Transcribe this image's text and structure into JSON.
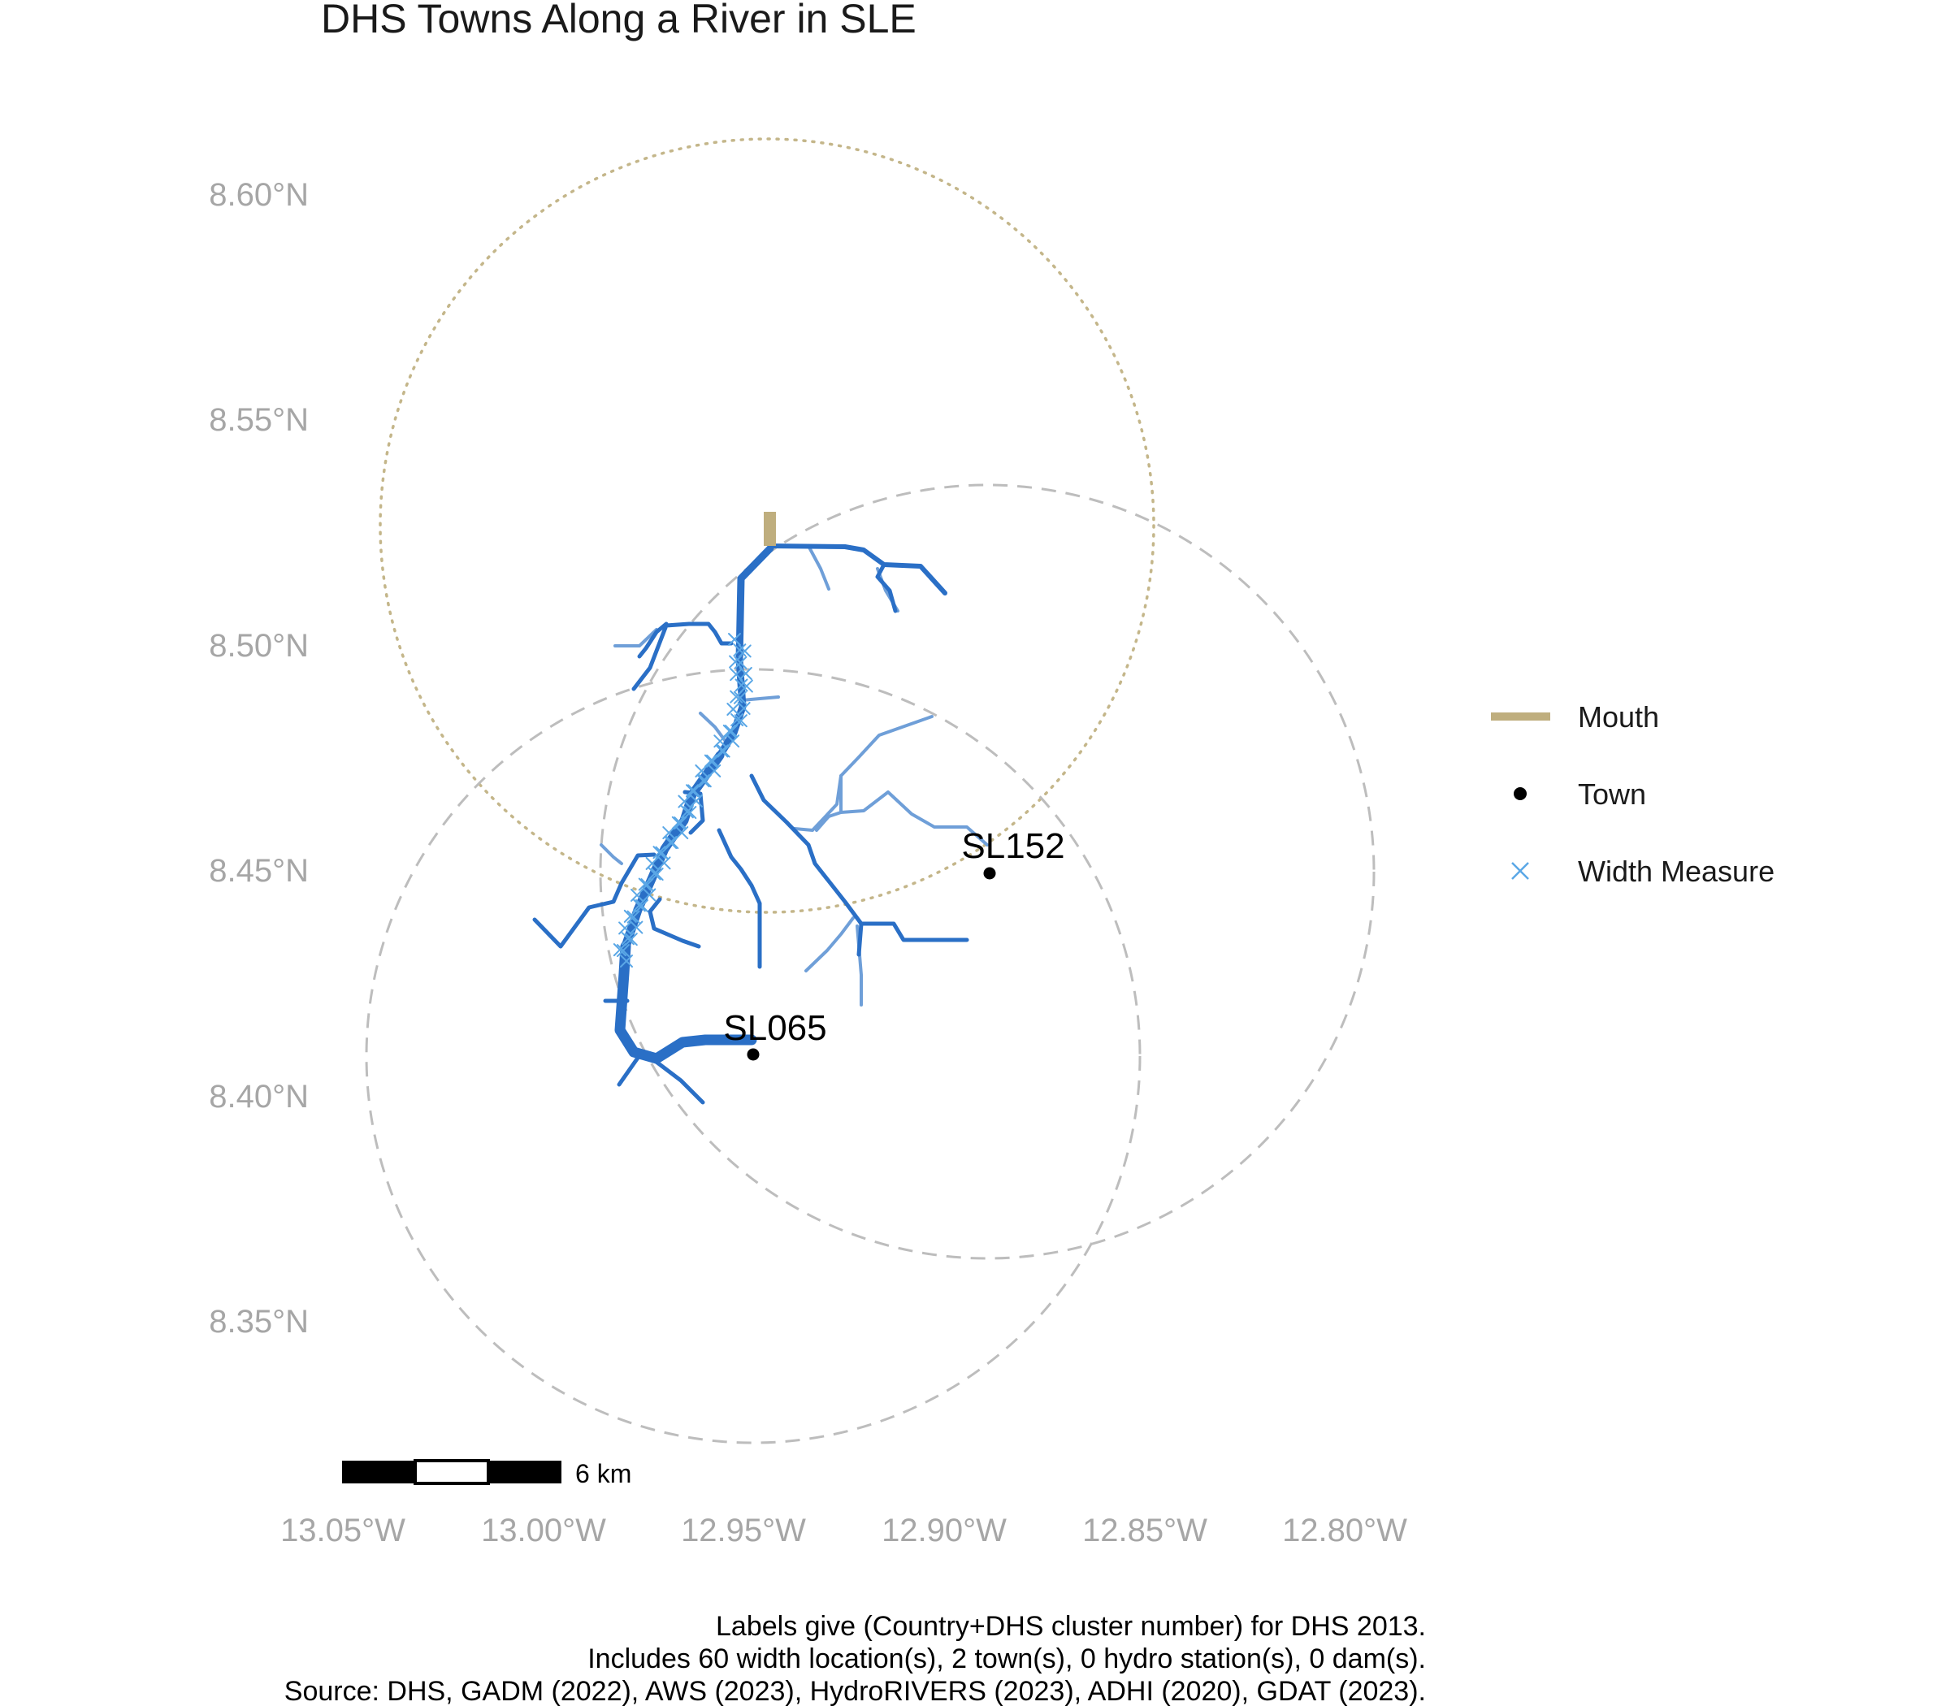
{
  "title": "DHS Towns Along a River in SLE",
  "axes": {
    "lat_ticks": [
      "8.60°N",
      "8.55°N",
      "8.50°N",
      "8.45°N",
      "8.40°N",
      "8.35°N"
    ],
    "lon_ticks": [
      "13.05°W",
      "13.00°W",
      "12.95°W",
      "12.90°W",
      "12.85°W",
      "12.80°W"
    ]
  },
  "legend": {
    "items": [
      {
        "label": "Mouth",
        "symbol": "line",
        "color": "#bfae7e"
      },
      {
        "label": "Town",
        "symbol": "dot",
        "color": "#000000"
      },
      {
        "label": "Width Measure",
        "symbol": "x",
        "color": "#5aa7e6"
      }
    ]
  },
  "towns": [
    {
      "label": "SL152",
      "lon": -12.891,
      "lat": 8.449
    },
    {
      "label": "SL065",
      "lon": -12.95,
      "lat": 8.408
    }
  ],
  "scale_bar": {
    "label": "6 km"
  },
  "caption": {
    "line1": "Labels give (Country+DHS cluster number) for DHS 2013.",
    "line2": "Includes 60 width location(s), 2 town(s), 0 hydro station(s), 0 dam(s).",
    "line3": "Source: DHS, GADM (2022), AWS (2023), HydroRIVERS (2023), ADHI (2020), GDAT (2023)."
  },
  "colors": {
    "river_main": "#2a6fc6",
    "river_minor": "#6f9fd8",
    "width_measure": "#5aa7e6",
    "mouth": "#bfae7e",
    "buffer_circle": "#bdbdbd",
    "mouth_circle": "#c4b68a",
    "tick_text": "#a6a6a6"
  }
}
